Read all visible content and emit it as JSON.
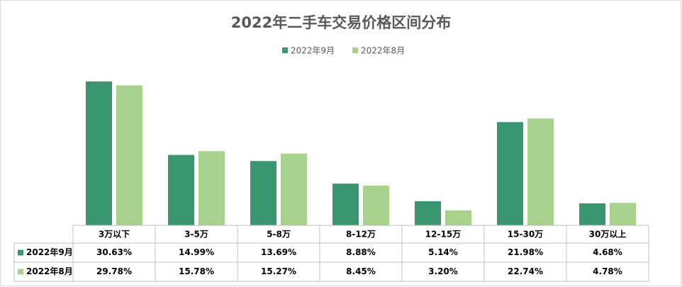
{
  "chart_data": {
    "type": "bar",
    "title": "2022年二手车交易价格区间分布",
    "categories": [
      "3万以下",
      "3-5万",
      "5-8万",
      "8-12万",
      "12-15万",
      "15-30万",
      "30万以上"
    ],
    "series": [
      {
        "name": "2022年9月",
        "color": "#3a9670",
        "values": [
          30.63,
          14.99,
          13.69,
          8.88,
          5.14,
          21.98,
          4.68
        ],
        "value_labels": [
          "30.63%",
          "14.99%",
          "13.69%",
          "8.88%",
          "5.14%",
          "21.98%",
          "4.68%"
        ]
      },
      {
        "name": "2022年8月",
        "color": "#a9d18e",
        "values": [
          29.78,
          15.78,
          15.27,
          8.45,
          3.2,
          22.74,
          4.78
        ],
        "value_labels": [
          "29.78%",
          "15.78%",
          "15.27%",
          "8.45%",
          "3.20%",
          "22.74%",
          "4.78%"
        ]
      }
    ]
  }
}
